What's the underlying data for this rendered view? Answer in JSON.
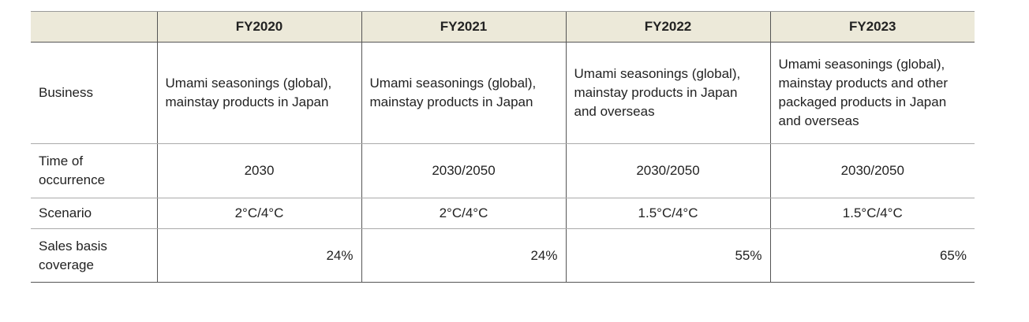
{
  "table": {
    "header": [
      "FY2020",
      "FY2021",
      "FY2022",
      "FY2023"
    ],
    "rows": [
      {
        "label": "Business",
        "cells": [
          "Umami seasonings (global), mainstay products in Japan",
          "Umami seasonings (global), mainstay products in Japan",
          "Umami seasonings (global), mainstay products in Japan and overseas",
          "Umami seasonings (global), mainstay products and other packaged products in Japan and overseas"
        ]
      },
      {
        "label": "Time of occurrence",
        "cells": [
          "2030",
          "2030/2050",
          "2030/2050",
          "2030/2050"
        ]
      },
      {
        "label": "Scenario",
        "cells": [
          "2°C/4°C",
          "2°C/4°C",
          "1.5°C/4°C",
          "1.5°C/4°C"
        ]
      },
      {
        "label": "Sales basis coverage",
        "cells": [
          "24%",
          "24%",
          "55%",
          "65%"
        ]
      }
    ]
  }
}
